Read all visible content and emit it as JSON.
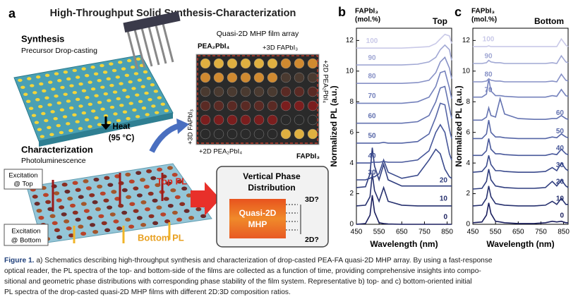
{
  "panel_a": {
    "label": "a",
    "title": "High-Throughput Solid Synthesis-Characterization",
    "synthesis": "Synthesis",
    "synthesis_sub": "Precursor Drop-casting",
    "array_title": "Quasi-2D MHP film array",
    "corner_2d": "PEA₂PbI₄",
    "top_axis": "+3D FAPbI₃",
    "right_axis": "+2D PEA₂PbI₄",
    "left_axis": "+3D FAPbI₃",
    "bottom_axis": "+2D PEA₂PbI₄",
    "corner_3d": "FAPbI₃",
    "heat": "Heat",
    "heat_temp": "(95 °C)",
    "characterization": "Characterization",
    "characterization_sub": "Photoluminescence",
    "excitation_top": [
      "Excitation",
      "@ Top"
    ],
    "top_pl": "Top PL",
    "excitation_bottom": [
      "Excitation",
      "@ Bottom"
    ],
    "bottom_pl": "Bottom PL",
    "phase_title": [
      "Vertical Phase",
      "Distribution"
    ],
    "phase_block": [
      "Quasi-2D",
      "MHP"
    ],
    "phase_top": "3D?",
    "phase_bottom": "2D?"
  },
  "chart_data": [
    {
      "type": "line",
      "panel_label": "b",
      "title": "Top",
      "legend_title": [
        "FAPbI₃",
        "(mol.%)"
      ],
      "xlabel": "Wavelength (nm)",
      "ylabel": "Normalized PL (a.u.)",
      "x": [
        450,
        490,
        510,
        520,
        530,
        550,
        570,
        590,
        650,
        720,
        770,
        800,
        820,
        840,
        860,
        870
      ],
      "xlim": [
        450,
        870
      ],
      "xticks": [
        450,
        550,
        650,
        750,
        850
      ],
      "ylim": [
        0,
        12.8
      ],
      "yticks": [
        0,
        2,
        4,
        6,
        8,
        10,
        12
      ],
      "series": [
        {
          "name": "0",
          "color": "#1b1f5e",
          "values": [
            0,
            0.05,
            0.6,
            1.9,
            0.8,
            0.1,
            0.05,
            0.02,
            0,
            0,
            0,
            0,
            0,
            0,
            0,
            0
          ]
        },
        {
          "name": "10",
          "color": "#26306e",
          "values": [
            1.2,
            1.25,
            1.8,
            3.3,
            2.2,
            1.5,
            2.4,
            1.5,
            1.25,
            1.2,
            1.2,
            1.2,
            1.2,
            1.2,
            1.2,
            1.2
          ]
        },
        {
          "name": "20",
          "color": "#2f3d7e",
          "values": [
            2.4,
            2.45,
            3.3,
            5.0,
            3.8,
            2.9,
            3.9,
            2.9,
            2.5,
            2.5,
            2.5,
            2.5,
            2.5,
            2.5,
            2.5,
            2.5
          ]
        },
        {
          "name": "30",
          "color": "#3a4a8c",
          "values": [
            2.9,
            2.9,
            3.0,
            3.1,
            3.1,
            3.3,
            4.2,
            3.4,
            3.0,
            3.2,
            4.2,
            4.9,
            4.6,
            3.6,
            3.1,
            3.0
          ]
        },
        {
          "name": "40",
          "color": "#47579a",
          "values": [
            4.0,
            4.0,
            4.0,
            4.05,
            4.05,
            4.05,
            4.1,
            4.05,
            4.05,
            4.2,
            4.8,
            6.0,
            6.5,
            6.0,
            4.6,
            4.2
          ]
        },
        {
          "name": "50",
          "color": "#5565a6",
          "values": [
            5.3,
            5.3,
            5.3,
            5.3,
            5.3,
            5.3,
            5.35,
            5.3,
            5.3,
            5.4,
            5.9,
            7.0,
            7.9,
            7.8,
            6.2,
            5.6
          ]
        },
        {
          "name": "60",
          "color": "#6473b1",
          "values": [
            6.6,
            6.6,
            6.6,
            6.6,
            6.6,
            6.6,
            6.6,
            6.6,
            6.6,
            6.7,
            7.1,
            8.0,
            8.9,
            9.0,
            7.6,
            6.9
          ]
        },
        {
          "name": "70",
          "color": "#7481bc",
          "values": [
            7.9,
            7.9,
            7.9,
            7.9,
            7.9,
            7.9,
            7.9,
            7.9,
            7.9,
            8.0,
            8.3,
            9.0,
            9.9,
            10.0,
            8.9,
            8.2
          ]
        },
        {
          "name": "80",
          "color": "#8791c6",
          "values": [
            9.2,
            9.2,
            9.2,
            9.2,
            9.2,
            9.2,
            9.2,
            9.2,
            9.2,
            9.25,
            9.4,
            9.9,
            10.6,
            10.9,
            10.2,
            9.5
          ]
        },
        {
          "name": "90",
          "color": "#a1a8d4",
          "values": [
            10.4,
            10.4,
            10.4,
            10.4,
            10.4,
            10.4,
            10.4,
            10.4,
            10.4,
            10.45,
            10.6,
            10.9,
            11.4,
            11.7,
            11.4,
            10.7
          ]
        },
        {
          "name": "100",
          "color": "#c9c9e8",
          "values": [
            11.5,
            11.5,
            11.5,
            11.5,
            11.5,
            11.5,
            11.5,
            11.5,
            11.5,
            11.55,
            11.6,
            11.8,
            12.1,
            12.4,
            12.3,
            11.8
          ]
        }
      ]
    },
    {
      "type": "line",
      "panel_label": "c",
      "title": "Bottom",
      "legend_title": [
        "FAPbI₃",
        "(mol.%)"
      ],
      "xlabel": "Wavelength (nm)",
      "ylabel": "Normalized PL (a.u.)",
      "x": [
        450,
        490,
        510,
        520,
        530,
        550,
        570,
        590,
        650,
        720,
        770,
        800,
        820,
        840,
        860,
        870
      ],
      "xlim": [
        450,
        870
      ],
      "xticks": [
        450,
        550,
        650,
        750,
        850
      ],
      "ylim": [
        0,
        12.8
      ],
      "yticks": [
        0,
        2,
        4,
        6,
        8,
        10,
        12
      ],
      "series": [
        {
          "name": "0",
          "color": "#1b1f5e",
          "values": [
            0.1,
            0.15,
            0.6,
            1.4,
            0.7,
            0.2,
            0.15,
            0.1,
            0.05,
            0.05,
            0.1,
            0.2,
            0.15,
            0.2,
            0.1,
            0.1
          ]
        },
        {
          "name": "10",
          "color": "#26306e",
          "values": [
            1.2,
            1.25,
            1.7,
            2.5,
            1.8,
            1.35,
            1.3,
            1.25,
            1.2,
            1.2,
            1.25,
            1.5,
            1.3,
            1.7,
            1.3,
            1.3
          ]
        },
        {
          "name": "20",
          "color": "#2f3d7e",
          "values": [
            2.3,
            2.35,
            2.8,
            3.6,
            2.9,
            2.5,
            2.45,
            2.4,
            2.35,
            2.35,
            2.4,
            2.8,
            2.5,
            2.9,
            2.5,
            2.4
          ]
        },
        {
          "name": "30",
          "color": "#3a4a8c",
          "values": [
            3.4,
            3.45,
            3.8,
            4.5,
            3.9,
            3.5,
            3.5,
            3.45,
            3.4,
            3.4,
            3.45,
            3.7,
            3.5,
            4.0,
            3.6,
            3.5
          ]
        },
        {
          "name": "40",
          "color": "#47579a",
          "values": [
            4.5,
            4.5,
            4.8,
            5.6,
            4.9,
            4.6,
            4.6,
            4.55,
            4.5,
            4.5,
            4.5,
            4.6,
            4.55,
            4.9,
            4.6,
            4.55
          ]
        },
        {
          "name": "50",
          "color": "#5565a6",
          "values": [
            5.6,
            5.6,
            5.9,
            6.8,
            6.0,
            5.7,
            5.7,
            5.65,
            5.6,
            5.6,
            5.6,
            5.7,
            5.65,
            5.9,
            5.7,
            5.65
          ]
        },
        {
          "name": "60",
          "color": "#6473b1",
          "values": [
            6.8,
            6.8,
            7.0,
            7.6,
            7.1,
            7.0,
            8.2,
            7.2,
            6.9,
            6.85,
            6.85,
            6.9,
            6.9,
            7.1,
            6.9,
            6.85
          ]
        },
        {
          "name": "70",
          "color": "#7481bc",
          "values": [
            8.3,
            8.3,
            8.5,
            9.5,
            8.7,
            8.4,
            8.4,
            8.35,
            8.3,
            8.3,
            8.3,
            8.4,
            8.35,
            8.8,
            8.4,
            8.35
          ]
        },
        {
          "name": "80",
          "color": "#8791c6",
          "values": [
            9.3,
            9.3,
            9.35,
            9.5,
            9.4,
            9.35,
            9.35,
            9.3,
            9.3,
            9.3,
            9.3,
            9.35,
            9.3,
            9.8,
            9.4,
            9.35
          ]
        },
        {
          "name": "90",
          "color": "#a1a8d4",
          "values": [
            10.5,
            10.5,
            10.55,
            10.7,
            10.6,
            10.55,
            10.55,
            10.5,
            10.5,
            10.5,
            10.5,
            10.55,
            10.5,
            11.0,
            10.6,
            10.55
          ]
        },
        {
          "name": "100",
          "color": "#c9c9e8",
          "values": [
            11.6,
            11.6,
            11.6,
            11.65,
            11.6,
            11.6,
            11.6,
            11.6,
            11.6,
            11.6,
            11.6,
            11.6,
            11.6,
            12.1,
            11.7,
            11.6
          ]
        }
      ]
    }
  ],
  "caption": {
    "label": "Figure 1.",
    "lines": [
      "a) Schematics describing high-throughput synthesis and characterization of drop-casted PEA-FA quasi-2D MHP array. By using a fast-response",
      "optical reader, the PL spectra of the top- and bottom-side of the films are collected as a function of time, providing comprehensive insights into compo-",
      "sitional and geometric phase distributions with corresponding phase stability of the film system. Representative b) top- and c) bottom-oriented initial",
      "PL spectra of the drop-casted quasi-2D MHP films with different 2D:3D composition ratios."
    ]
  }
}
